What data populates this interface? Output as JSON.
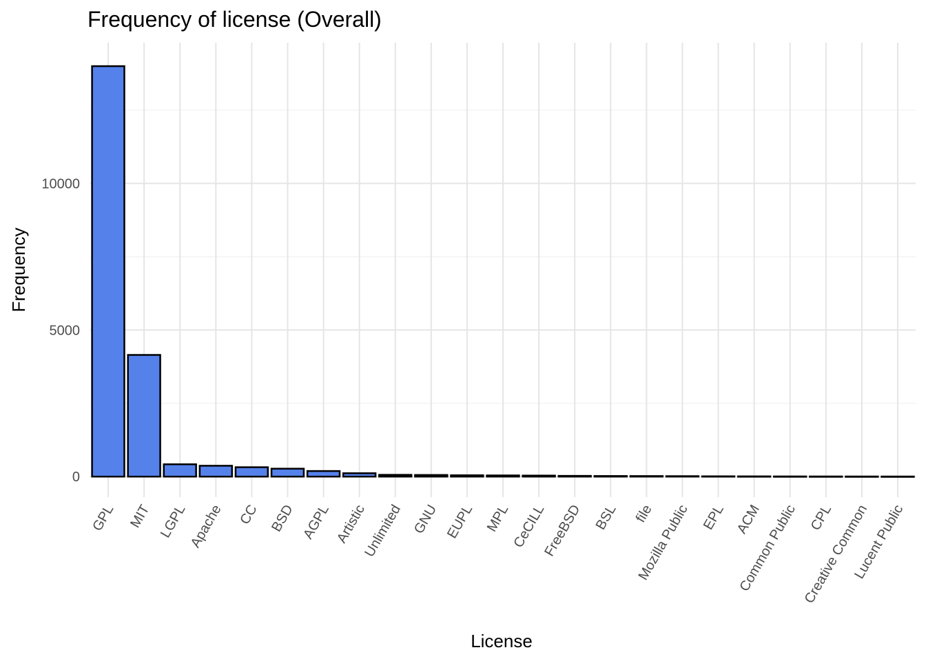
{
  "chart_data": {
    "type": "bar",
    "title": "Frequency of license (Overall)",
    "xlabel": "License",
    "ylabel": "Frequency",
    "categories": [
      "GPL",
      "MIT",
      "LGPL",
      "Apache",
      "CC",
      "BSD",
      "AGPL",
      "Artistic",
      "Unlimited",
      "GNU",
      "EUPL",
      "MPL",
      "CeCILL",
      "FreeBSD",
      "BSL",
      "file",
      "Mozilla Public",
      "EPL",
      "ACM",
      "Common Public",
      "CPL",
      "Creative Common",
      "Lucent Public"
    ],
    "values": [
      14000,
      4150,
      420,
      370,
      320,
      270,
      190,
      115,
      60,
      55,
      45,
      40,
      35,
      25,
      20,
      18,
      15,
      10,
      8,
      6,
      5,
      4,
      3
    ],
    "yticks": [
      0,
      5000,
      10000
    ],
    "ylim": [
      -700,
      14800
    ],
    "grid": true,
    "bar_color": "#5581ea",
    "bar_outline": "#000000"
  }
}
